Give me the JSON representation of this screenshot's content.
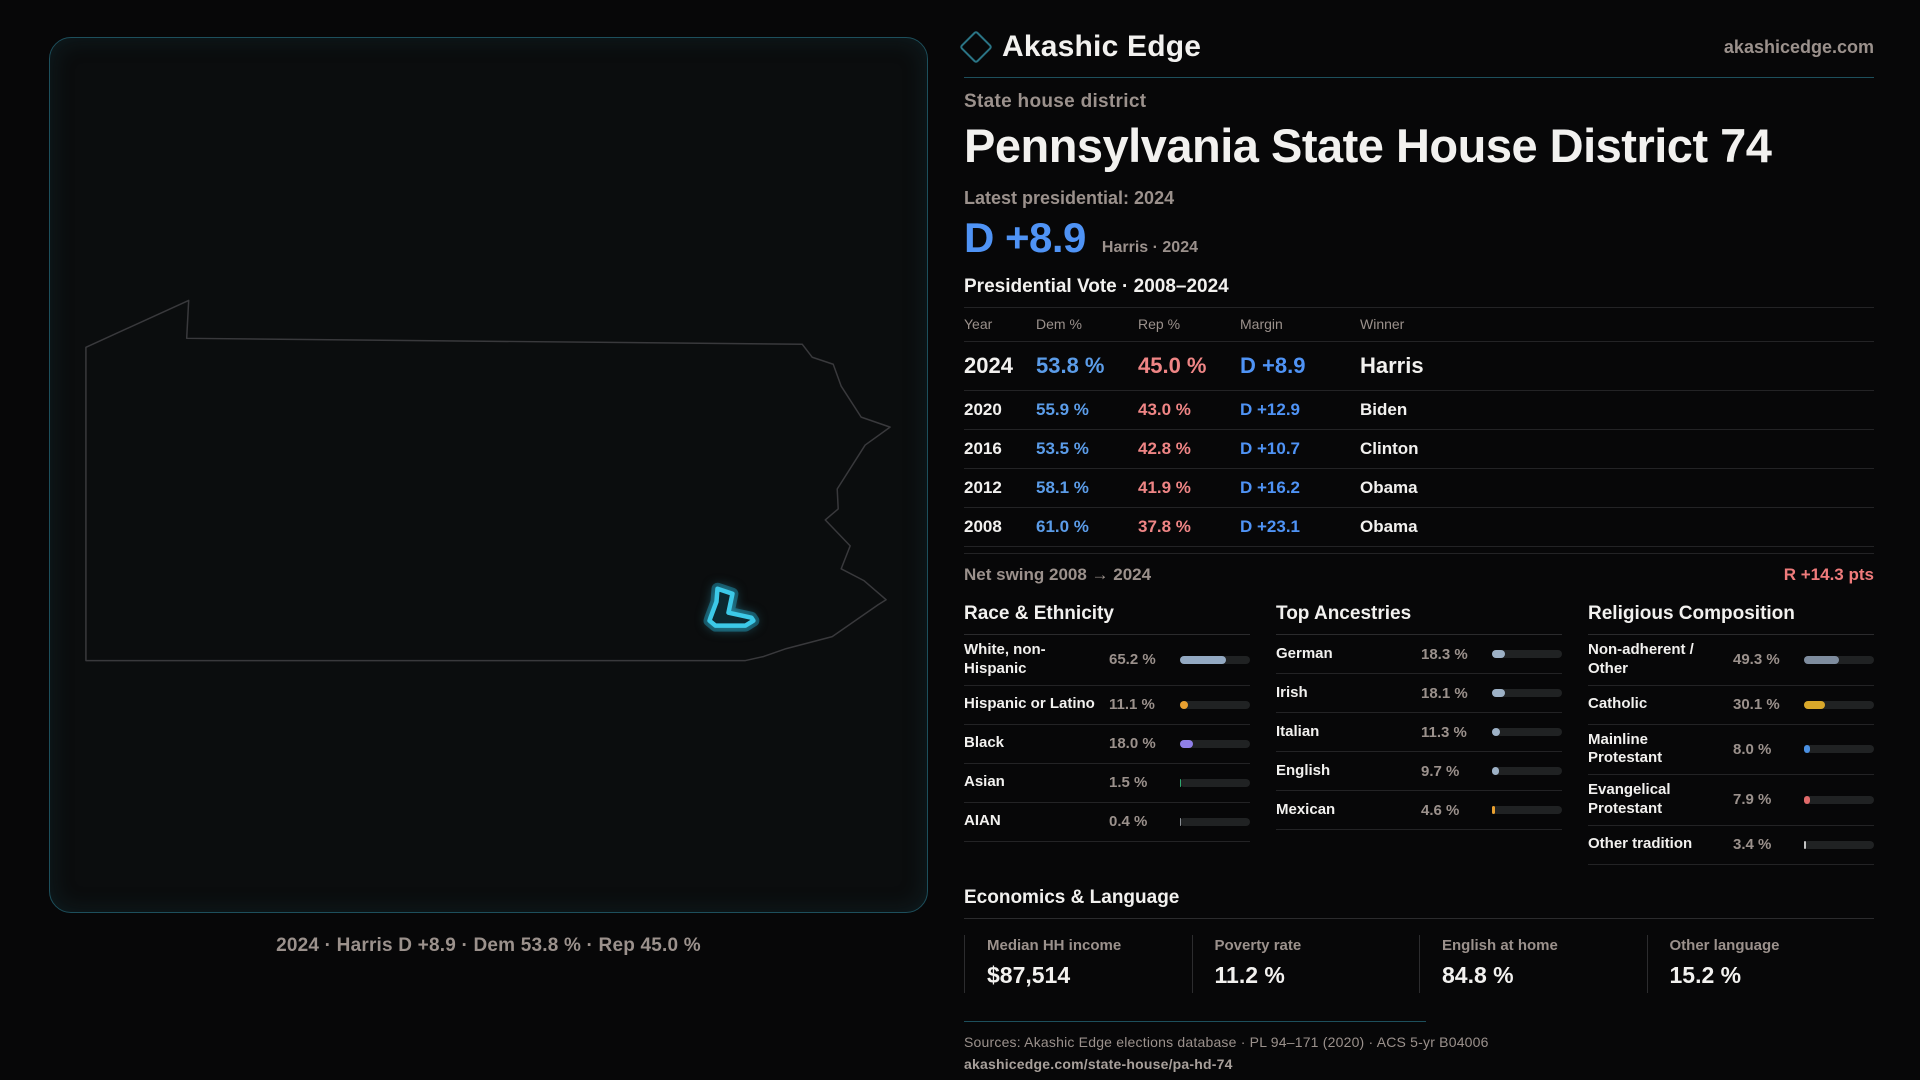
{
  "colors": {
    "page_bg": "#070708",
    "panel_bg": "#0b0d0e",
    "panel_border": "#1d4f5c",
    "teal_divider": "#1d4f5c",
    "district_cyan": "#3cc9e8",
    "district_glow": "#134b5a",
    "state_outline": "#39393c",
    "text_primary": "#f2f1ef",
    "text_muted": "#9b918c",
    "dem_blue": "#5b9ce8",
    "rep_red": "#ef8585",
    "margin_blue": "#4f93f5",
    "swing_red": "#ef7b7b",
    "bar_track": "#202223",
    "hairline": "#232325"
  },
  "brand": {
    "name": "Akashic Edge",
    "site": "akashicedge.com",
    "logo_icon": "diamond-icon"
  },
  "page": {
    "eyebrow": "State house district",
    "title": "Pennsylvania State House District 74",
    "latest_label": "Latest presidential: 2024",
    "headline_margin": "D +8.9",
    "headline_note": "Harris · 2024"
  },
  "map": {
    "caption": "2024 · Harris D +8.9 · Dem 53.8 % · Rep 45.0 %"
  },
  "vote_table": {
    "title": "Presidential Vote · 2008–2024",
    "columns": [
      "Year",
      "Dem %",
      "Rep %",
      "Margin",
      "Winner"
    ],
    "rows": [
      {
        "year": "2024",
        "dem": "53.8 %",
        "rep": "45.0 %",
        "margin": "D +8.9",
        "winner": "Harris"
      },
      {
        "year": "2020",
        "dem": "55.9 %",
        "rep": "43.0 %",
        "margin": "D +12.9",
        "winner": "Biden"
      },
      {
        "year": "2016",
        "dem": "53.5 %",
        "rep": "42.8 %",
        "margin": "D +10.7",
        "winner": "Clinton"
      },
      {
        "year": "2012",
        "dem": "58.1 %",
        "rep": "41.9 %",
        "margin": "D +16.2",
        "winner": "Obama"
      },
      {
        "year": "2008",
        "dem": "61.0 %",
        "rep": "37.8 %",
        "margin": "D +23.1",
        "winner": "Obama"
      }
    ],
    "net_swing_label": "Net swing 2008 → 2024",
    "net_swing_value": "R +14.3 pts"
  },
  "demographics": {
    "race": {
      "title": "Race & Ethnicity",
      "rows": [
        {
          "label": "White, non-Hispanic",
          "value": "65.2 %",
          "pct": 65.2,
          "color": "#93a9c2"
        },
        {
          "label": "Hispanic or Latino",
          "value": "11.1 %",
          "pct": 11.1,
          "color": "#e8a030"
        },
        {
          "label": "Black",
          "value": "18.0 %",
          "pct": 18.0,
          "color": "#8f7fe8"
        },
        {
          "label": "Asian",
          "value": "1.5 %",
          "pct": 1.5,
          "color": "#2ea86e"
        },
        {
          "label": "AIAN",
          "value": "0.4 %",
          "pct": 0.4,
          "color": "#8a8f94"
        }
      ]
    },
    "ancestries": {
      "title": "Top Ancestries",
      "rows": [
        {
          "label": "German",
          "value": "18.3 %",
          "pct": 18.3,
          "color": "#9db1c6"
        },
        {
          "label": "Irish",
          "value": "18.1 %",
          "pct": 18.1,
          "color": "#9db1c6"
        },
        {
          "label": "Italian",
          "value": "11.3 %",
          "pct": 11.3,
          "color": "#9db1c6"
        },
        {
          "label": "English",
          "value": "9.7 %",
          "pct": 9.7,
          "color": "#9db1c6"
        },
        {
          "label": "Mexican",
          "value": "4.6 %",
          "pct": 4.6,
          "color": "#e8a030"
        }
      ]
    },
    "religion": {
      "title": "Religious Composition",
      "rows": [
        {
          "label": "Non-adherent / Other",
          "value": "49.3 %",
          "pct": 49.3,
          "color": "#7e8c9e"
        },
        {
          "label": "Catholic",
          "value": "30.1 %",
          "pct": 30.1,
          "color": "#d9a82a"
        },
        {
          "label": "Mainline Protestant",
          "value": "8.0 %",
          "pct": 8.0,
          "color": "#4a90e2"
        },
        {
          "label": "Evangelical Protestant",
          "value": "7.9 %",
          "pct": 7.9,
          "color": "#e06a6a"
        },
        {
          "label": "Other tradition",
          "value": "3.4 %",
          "pct": 3.4,
          "color": "#c4c4c4"
        }
      ]
    }
  },
  "economics": {
    "title": "Economics & Language",
    "stats": [
      {
        "label": "Median HH income",
        "value": "$87,514"
      },
      {
        "label": "Poverty rate",
        "value": "11.2 %"
      },
      {
        "label": "English at home",
        "value": "84.8 %"
      },
      {
        "label": "Other language",
        "value": "15.2 %"
      }
    ]
  },
  "footer": {
    "sources": "Sources: Akashic Edge elections database · PL 94–171 (2020) · ACS 5-yr B04006",
    "permalink": "akashicedge.com/state-house/pa-hd-74"
  }
}
